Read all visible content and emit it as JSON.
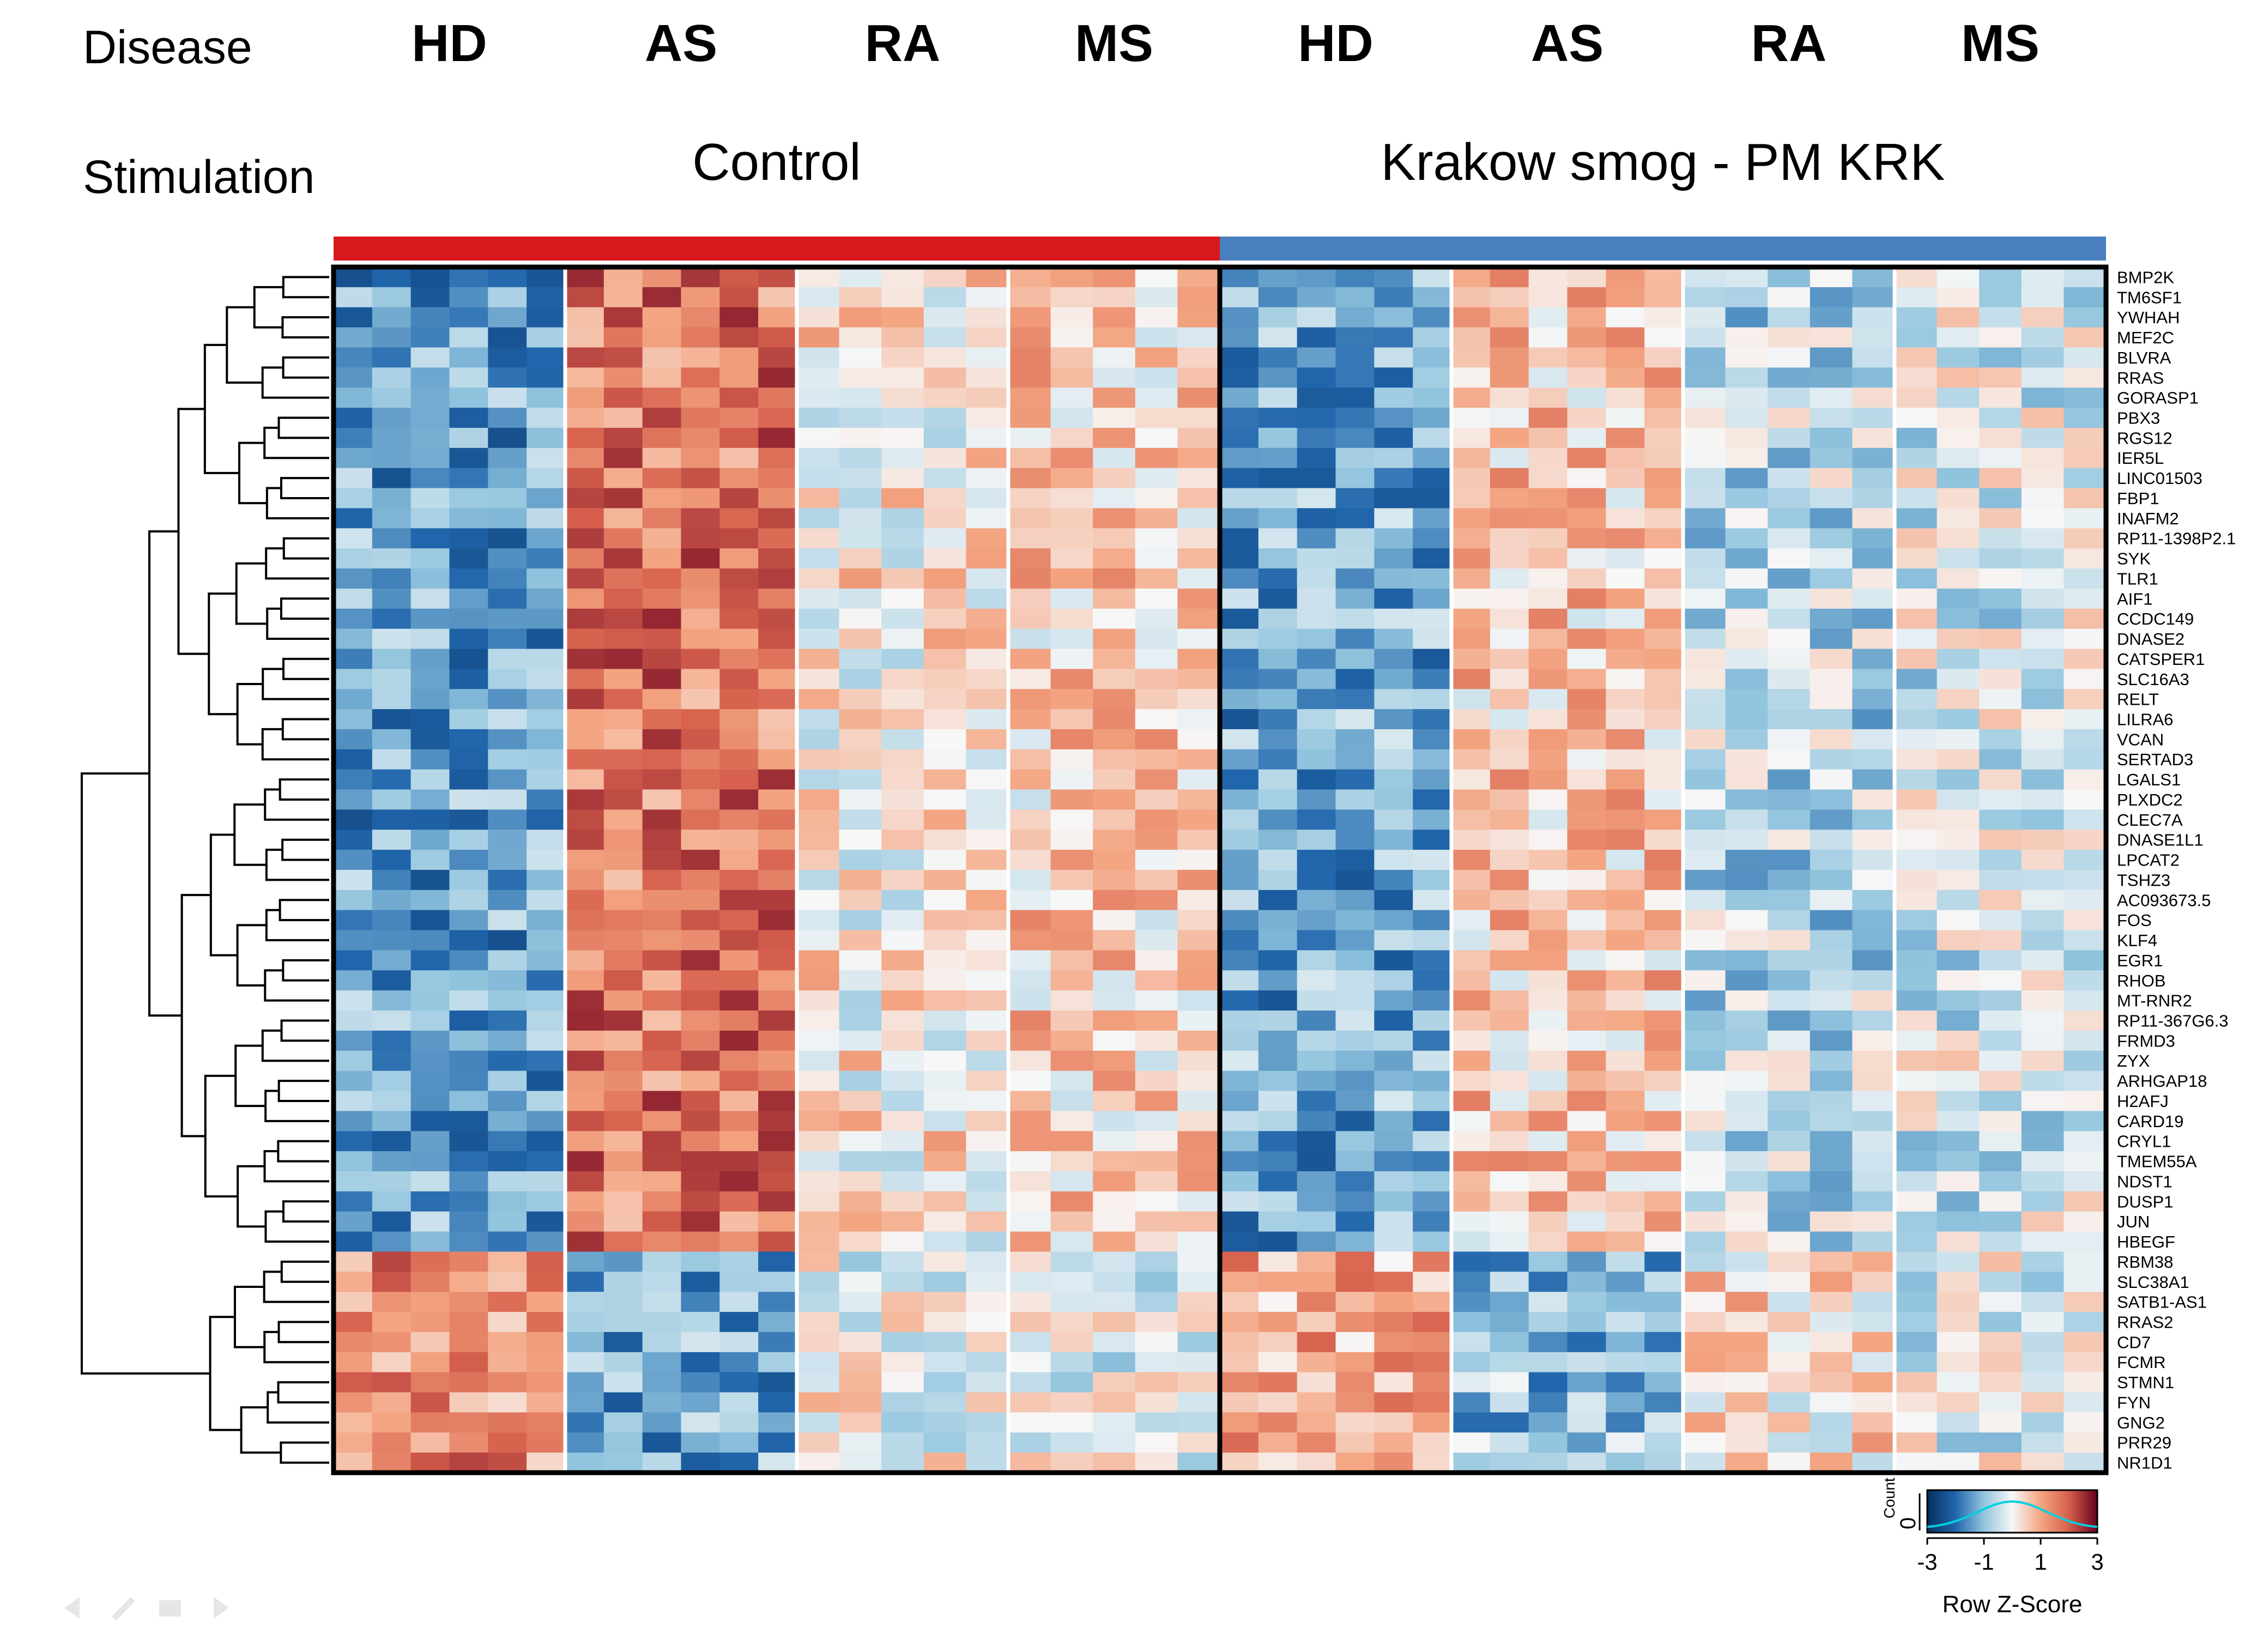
{
  "header": {
    "disease_label": "Disease",
    "stimulation_label": "Stimulation"
  },
  "chart_data": {
    "type": "heatmap",
    "title": "",
    "stimulation_groups": [
      {
        "name": "Control",
        "color": "#d7191c",
        "diseases": [
          "HD",
          "AS",
          "RA",
          "MS"
        ]
      },
      {
        "name": "Krakow smog - PM KRK",
        "color": "#4a7fbf",
        "diseases": [
          "HD",
          "AS",
          "RA",
          "MS"
        ]
      }
    ],
    "columns_per_disease": [
      6,
      6,
      5,
      5
    ],
    "genes": [
      "BMP2K",
      "TM6SF1",
      "YWHAH",
      "MEF2C",
      "BLVRA",
      "RRAS",
      "GORASP1",
      "PBX3",
      "RGS12",
      "IER5L",
      "LINC01503",
      "FBP1",
      "INAFM2",
      "RP11-1398P2.1",
      "SYK",
      "TLR1",
      "AIF1",
      "CCDC149",
      "DNASE2",
      "CATSPER1",
      "SLC16A3",
      "RELT",
      "LILRA6",
      "VCAN",
      "SERTAD3",
      "LGALS1",
      "PLXDC2",
      "CLEC7A",
      "DNASE1L1",
      "LPCAT2",
      "TSHZ3",
      "AC093673.5",
      "FOS",
      "KLF4",
      "EGR1",
      "RHOB",
      "MT-RNR2",
      "RP11-367G6.3",
      "FRMD3",
      "ZYX",
      "ARHGAP18",
      "H2AFJ",
      "CARD19",
      "CRYL1",
      "TMEM55A",
      "NDST1",
      "DUSP1",
      "JUN",
      "HBEGF",
      "RBM38",
      "SLC38A1",
      "SATB1-AS1",
      "RRAS2",
      "CD7",
      "FCMR",
      "STMN1",
      "FYN",
      "GNG2",
      "PRR29",
      "NR1D1"
    ],
    "gene_clusters": [
      {
        "genes": "BMP2K-HBEGF",
        "mean_z": {
          "Control": {
            "HD": -1.4,
            "AS": 1.6,
            "RA": 0.2,
            "MS": 0.5
          },
          "Krakow smog - PM KRK": {
            "HD": -1.3,
            "AS": 0.6,
            "RA": -0.6,
            "MS": -0.3
          }
        }
      },
      {
        "genes": "RBM38-NR1D1",
        "mean_z": {
          "Control": {
            "HD": 1.3,
            "AS": -1.3,
            "RA": 0.0,
            "MS": -0.2
          },
          "Krakow smog - PM KRK": {
            "HD": 1.0,
            "AS": -1.0,
            "RA": 0.3,
            "MS": -0.2
          }
        }
      }
    ],
    "color_key": {
      "title": "Row Z-Score",
      "hist_label": "Count",
      "hist_tick": "0",
      "ticks": [
        "-3",
        "-1",
        "1",
        "3"
      ],
      "range": [
        -3,
        3
      ],
      "low_color": "#2166ac",
      "mid_color": "#f7f7f7",
      "high_color": "#b2182b"
    }
  }
}
